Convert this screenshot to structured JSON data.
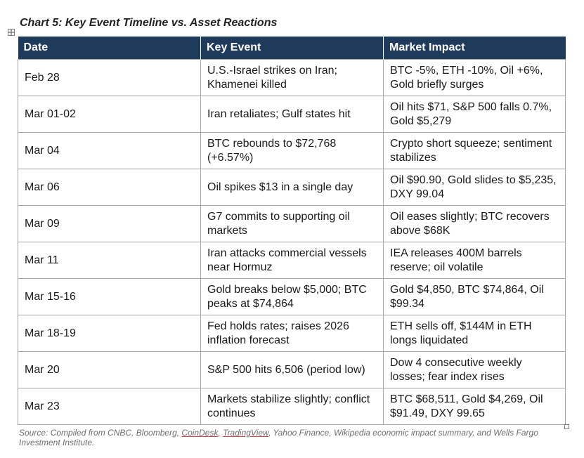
{
  "title": "Chart 5: Key Event Timeline vs. Asset Reactions",
  "table": {
    "headers": [
      "Date",
      "Key Event",
      "Market Impact"
    ],
    "rows": [
      {
        "date": "Feb 28",
        "event": "U.S.-Israel strikes on Iran; Khamenei killed",
        "impact": "BTC -5%, ETH -10%, Oil +6%, Gold briefly surges"
      },
      {
        "date": "Mar 01-02",
        "event": "Iran retaliates; Gulf states hit",
        "impact": "Oil hits $71, S&P 500 falls 0.7%, Gold $5,279"
      },
      {
        "date": "Mar 04",
        "event": "BTC rebounds to $72,768 (+6.57%)",
        "impact": "Crypto short squeeze; sentiment stabilizes"
      },
      {
        "date": "Mar 06",
        "event": "Oil spikes $13 in a single day",
        "impact": "Oil $90.90, Gold slides to $5,235, DXY 99.04"
      },
      {
        "date": "Mar 09",
        "event": "G7 commits to supporting oil markets",
        "impact": "Oil eases slightly; BTC recovers above $68K"
      },
      {
        "date": "Mar 11",
        "event": "Iran attacks commercial vessels near Hormuz",
        "impact": "IEA releases 400M barrels reserve; oil volatile"
      },
      {
        "date": "Mar 15-16",
        "event": "Gold breaks below $5,000; BTC peaks at $74,864",
        "impact": "Gold $4,850, BTC $74,864, Oil $99.34"
      },
      {
        "date": "Mar 18-19",
        "event": "Fed holds rates; raises 2026 inflation forecast",
        "impact": "ETH sells off, $144M in ETH longs liquidated"
      },
      {
        "date": "Mar 20",
        "event": "S&P 500 hits 6,506 (period low)",
        "impact": "Dow 4 consecutive weekly losses; fear index rises"
      },
      {
        "date": "Mar 23",
        "event": "Markets stabilize slightly; conflict continues",
        "impact": "BTC $68,511, Gold $4,269, Oil $91.49, DXY 99.65"
      }
    ]
  },
  "source": {
    "prefix": "Source: Compiled from CNBC, Bloomberg, ",
    "coindesk": "CoinDesk",
    "sep1": ", ",
    "tradingview": "TradingView",
    "suffix": ", Yahoo Finance, Wikipedia economic impact summary, and Wells Fargo Investment Institute."
  },
  "colors": {
    "header_bg": "#1f3b5b",
    "header_text": "#ffffff",
    "grid": "#a6a6a6"
  }
}
